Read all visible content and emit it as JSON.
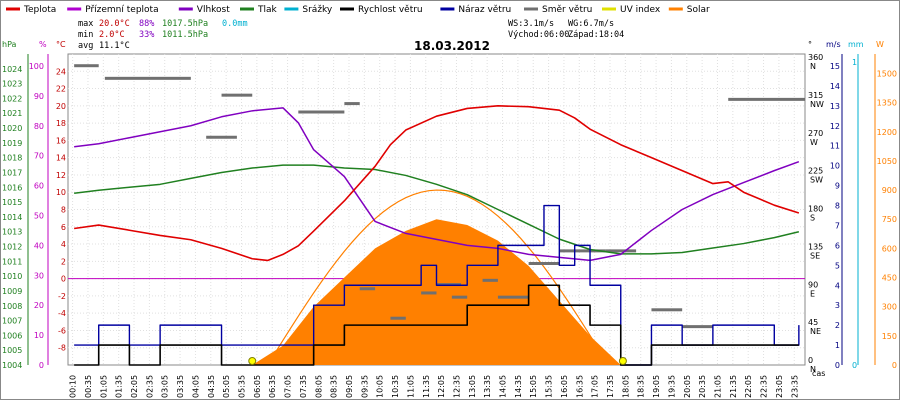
{
  "chart_data": {
    "type": "line",
    "title": "18.03.2012",
    "legend": [
      {
        "name": "Teplota",
        "color": "#e00000"
      },
      {
        "name": "Přízemní teplota",
        "color": "#b000d0"
      },
      {
        "name": "Vlhkost",
        "color": "#8000c0"
      },
      {
        "name": "Tlak",
        "color": "#208020"
      },
      {
        "name": "Srážky",
        "color": "#00b0d0"
      },
      {
        "name": "Rychlost větru",
        "color": "#000000"
      },
      {
        "name": "Náraz větru",
        "color": "#0000a0"
      },
      {
        "name": "Směr větru",
        "color": "#707070"
      },
      {
        "name": "UV index",
        "color": "#e0e000"
      },
      {
        "name": "Solar",
        "color": "#ff8000"
      }
    ],
    "stats": {
      "max_label": "max",
      "max_temp": "20.0°C",
      "max_hum": "88%",
      "max_press": "1017.5hPa",
      "rain": "0.0mm",
      "min_label": "min",
      "min_temp": "2.0°C",
      "min_hum": "33%",
      "min_press": "1011.5hPa",
      "avg_label": "avg",
      "avg_temp": "11.1°C",
      "ws": "WS:3.1m/s",
      "wg": "WG:6.7m/s",
      "sunrise": "Východ:06:00",
      "sunset": "Západ:18:04"
    },
    "axes": {
      "hpa_unit": "hPa",
      "pct_unit": "%",
      "temp_unit": "°C",
      "dir_unit": "°",
      "ms_unit": "m/s",
      "mm_unit": "mm",
      "w_unit": "W",
      "time_unit": "čas",
      "hpa_ticks": [
        1004,
        1005,
        1006,
        1007,
        1008,
        1009,
        1010,
        1011,
        1012,
        1013,
        1014,
        1015,
        1016,
        1017,
        1018,
        1019,
        1020,
        1021,
        1022,
        1023,
        1024
      ],
      "pct_ticks": [
        0,
        10,
        20,
        30,
        40,
        50,
        60,
        70,
        80,
        90,
        100
      ],
      "temp_ticks": [
        -8,
        -6,
        -4,
        -2,
        0,
        2,
        4,
        6,
        8,
        10,
        12,
        14,
        16,
        18,
        20,
        22,
        24
      ],
      "temp_range": [
        -10,
        26
      ],
      "dir_ticks": [
        {
          "deg": "0",
          "dir": "N"
        },
        {
          "deg": "45",
          "dir": "NE"
        },
        {
          "deg": "90",
          "dir": "E"
        },
        {
          "deg": "135",
          "dir": "SE"
        },
        {
          "deg": "180",
          "dir": "S"
        },
        {
          "deg": "225",
          "dir": "SW"
        },
        {
          "deg": "270",
          "dir": "W"
        },
        {
          "deg": "315",
          "dir": "NW"
        },
        {
          "deg": "360",
          "dir": "N"
        }
      ],
      "ms_ticks": [
        0,
        1,
        2,
        3,
        4,
        5,
        6,
        7,
        8,
        9,
        10,
        11,
        12,
        13,
        14,
        15
      ],
      "mm_ticks": [
        0,
        1
      ],
      "w_ticks": [
        0,
        150,
        300,
        450,
        600,
        750,
        900,
        1050,
        1200,
        1350,
        1500
      ],
      "time_ticks": [
        "00:10",
        "00:35",
        "01:05",
        "01:35",
        "02:05",
        "02:35",
        "03:05",
        "03:35",
        "04:05",
        "04:35",
        "05:05",
        "05:35",
        "06:05",
        "06:35",
        "07:05",
        "07:35",
        "08:05",
        "08:35",
        "09:05",
        "09:35",
        "10:05",
        "10:35",
        "11:05",
        "11:35",
        "12:05",
        "12:35",
        "13:05",
        "13:35",
        "14:05",
        "14:35",
        "15:05",
        "15:35",
        "16:05",
        "16:35",
        "17:05",
        "17:35",
        "18:05",
        "18:35",
        "19:05",
        "19:35",
        "20:05",
        "20:35",
        "21:05",
        "21:35",
        "22:05",
        "22:35",
        "23:05",
        "23:35"
      ]
    },
    "series": [
      {
        "name": "Teplota",
        "unit": "°C",
        "x_hours": [
          0.2,
          1,
          2,
          3,
          4,
          5,
          6,
          6.5,
          7,
          7.5,
          8,
          9,
          10,
          10.5,
          11,
          12,
          13,
          14,
          15,
          16,
          16.5,
          17,
          18,
          19,
          20,
          21,
          21.5,
          22,
          23,
          23.8
        ],
        "values": [
          5.8,
          6.2,
          5.6,
          5.0,
          4.5,
          3.5,
          2.3,
          2.1,
          2.8,
          3.8,
          5.5,
          9.0,
          13.0,
          15.5,
          17.2,
          18.8,
          19.7,
          20.0,
          19.9,
          19.5,
          18.6,
          17.3,
          15.5,
          14.0,
          12.5,
          11.0,
          11.2,
          10.0,
          8.5,
          7.6
        ]
      },
      {
        "name": "Vlhkost",
        "unit": "%",
        "x_hours": [
          0.2,
          1,
          2,
          3,
          4,
          5,
          6,
          7,
          7.5,
          8,
          9,
          10,
          11,
          12,
          13,
          14,
          15,
          16,
          17,
          18,
          19,
          20,
          21,
          22,
          23,
          23.8
        ],
        "values": [
          73,
          74,
          76,
          78,
          80,
          83,
          85,
          86,
          81,
          72,
          63,
          48,
          44,
          42,
          40,
          39,
          37,
          36,
          35,
          37,
          45,
          52,
          57,
          61,
          65,
          68
        ]
      },
      {
        "name": "Tlak",
        "unit": "hPa",
        "x_hours": [
          0.2,
          1,
          2,
          3,
          4,
          5,
          6,
          7,
          8,
          9,
          10,
          11,
          12,
          13,
          14,
          15,
          16,
          17,
          18,
          19,
          20,
          21,
          22,
          23,
          23.8
        ],
        "values": [
          1015.6,
          1015.8,
          1016.0,
          1016.2,
          1016.6,
          1017.0,
          1017.3,
          1017.5,
          1017.5,
          1017.3,
          1017.2,
          1016.8,
          1016.2,
          1015.5,
          1014.5,
          1013.5,
          1012.5,
          1011.8,
          1011.5,
          1011.5,
          1011.6,
          1011.9,
          1012.2,
          1012.6,
          1013.0
        ]
      },
      {
        "name": "Rychlost větru",
        "unit": "m/s",
        "x_hours": [
          0.2,
          1,
          2,
          3,
          4,
          5,
          6,
          7,
          8,
          9,
          10,
          11,
          12,
          13,
          14,
          15,
          16,
          17,
          18,
          19,
          20,
          21,
          22,
          23,
          23.8
        ],
        "values": [
          0,
          1,
          0,
          1,
          1,
          0,
          0,
          0,
          1,
          2,
          2,
          2,
          2,
          3,
          3,
          4,
          3,
          2,
          0,
          1,
          1,
          1,
          1,
          1,
          1
        ]
      },
      {
        "name": "Náraz větru",
        "unit": "m/s",
        "x_hours": [
          0.2,
          1,
          2,
          3,
          4,
          5,
          6,
          7,
          8,
          9,
          10,
          11,
          11.5,
          12,
          13,
          14,
          15,
          15.5,
          16,
          16.5,
          17,
          18,
          19,
          20,
          21,
          22,
          23,
          23.8
        ],
        "values": [
          1,
          2,
          1,
          2,
          2,
          1,
          1,
          1,
          3,
          4,
          4,
          4,
          5,
          4,
          5,
          6,
          6,
          8,
          5,
          6,
          4,
          0,
          2,
          1,
          2,
          2,
          1,
          2
        ]
      },
      {
        "name": "Solar",
        "unit": "W",
        "x_hours": [
          6,
          7,
          8,
          9,
          10,
          11,
          12,
          13,
          14,
          15,
          16,
          17,
          18
        ],
        "values": [
          0,
          100,
          300,
          450,
          600,
          690,
          750,
          720,
          640,
          510,
          330,
          150,
          0
        ]
      }
    ]
  }
}
